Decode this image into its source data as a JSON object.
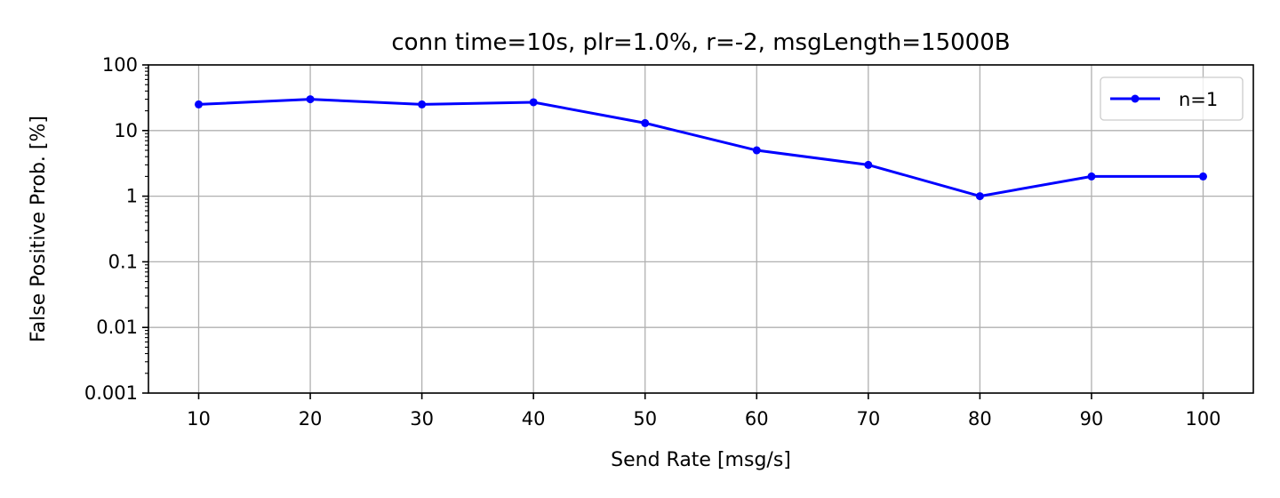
{
  "chart_data": {
    "type": "line",
    "title": "conn time=10s, plr=1.0%, r=-2, msgLength=15000B",
    "xlabel": "Send Rate [msg/s]",
    "ylabel": "False Positive Prob. [%]",
    "x": [
      10,
      20,
      30,
      40,
      50,
      60,
      70,
      80,
      90,
      100
    ],
    "xticks": [
      10,
      20,
      30,
      40,
      50,
      60,
      70,
      80,
      90,
      100
    ],
    "xlim": [
      5.5,
      104.5
    ],
    "yscale": "log",
    "ylim": [
      0.001,
      100
    ],
    "yticks": [
      0.001,
      0.01,
      0.1,
      1,
      10,
      100
    ],
    "yticklabels": [
      "0.001",
      "0.01",
      "0.1",
      "1",
      "10",
      "100"
    ],
    "grid": true,
    "legend_position": "top-right",
    "series": [
      {
        "name": "n=1",
        "color": "#0000ff",
        "marker": "circle",
        "values": [
          25,
          30,
          25,
          27,
          13,
          5,
          3,
          1,
          2,
          2
        ]
      }
    ]
  }
}
